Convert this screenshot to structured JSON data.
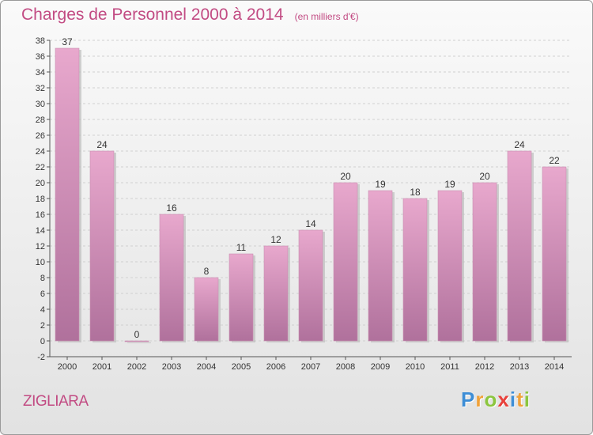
{
  "header": {
    "title": "Charges de Personnel 2000 à 2014",
    "subtitle": "(en milliers d'€)"
  },
  "commune": "ZIGLIARA",
  "logo": {
    "letters": [
      {
        "char": "P",
        "color": "#3e8ed6"
      },
      {
        "char": "r",
        "color": "#f0a23a"
      },
      {
        "char": "o",
        "color": "#8cc63f"
      },
      {
        "char": "x",
        "color": "#e8413b"
      },
      {
        "char": "i",
        "color": "#3e8ed6"
      },
      {
        "char": "t",
        "color": "#f0a23a"
      },
      {
        "char": "i",
        "color": "#8cc63f"
      }
    ]
  },
  "colors": {
    "title": "#c24b83",
    "bar_top": "#e8a8cd",
    "bar_bottom": "#b0719c",
    "bar_shadow": "#bdbdbd",
    "grid": "#d0d0d0"
  },
  "chart_data": {
    "type": "bar",
    "categories": [
      "2000",
      "2001",
      "2002",
      "2003",
      "2004",
      "2005",
      "2006",
      "2007",
      "2008",
      "2009",
      "2010",
      "2011",
      "2012",
      "2013",
      "2014"
    ],
    "values": [
      37,
      24,
      0,
      16,
      8,
      11,
      12,
      14,
      20,
      19,
      18,
      19,
      20,
      24,
      22
    ],
    "data_labels": [
      "37",
      "24",
      "0",
      "16",
      "8",
      "11",
      "12",
      "14",
      "20",
      "19",
      "18",
      "19",
      "20",
      "24",
      "22"
    ],
    "yticks": [
      -2,
      0,
      2,
      4,
      6,
      8,
      10,
      12,
      14,
      16,
      18,
      20,
      22,
      24,
      26,
      28,
      30,
      32,
      34,
      36,
      38
    ],
    "ylim": [
      -2,
      38
    ],
    "grid": true,
    "legend": "none"
  }
}
